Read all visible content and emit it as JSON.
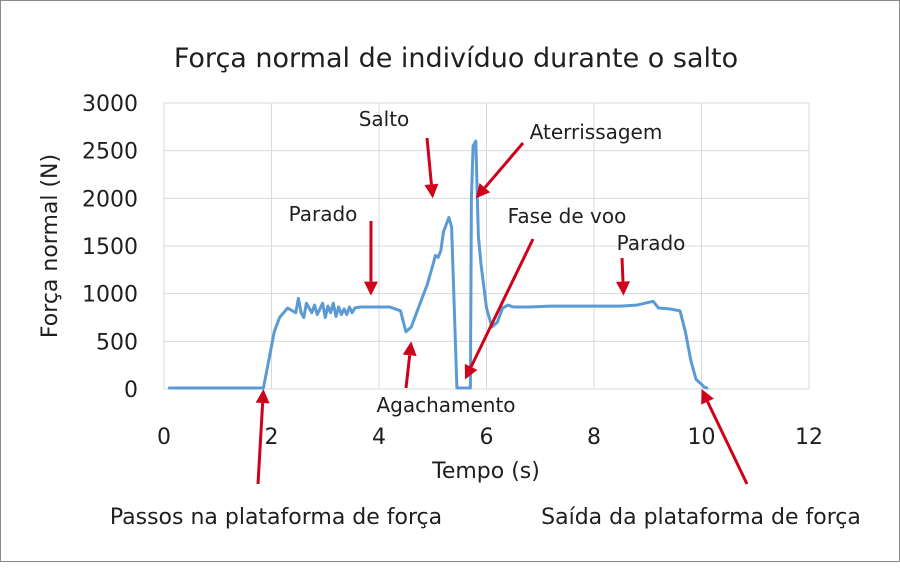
{
  "chart_data": {
    "type": "line",
    "title": "Força normal de indivíduo durante o salto",
    "xlabel": "Tempo (s)",
    "ylabel": "Força normal (N)",
    "xlim": [
      0,
      12
    ],
    "ylim": [
      0,
      3000
    ],
    "x_ticks": [
      0,
      2,
      4,
      6,
      8,
      10,
      12
    ],
    "y_ticks": [
      0,
      500,
      1000,
      1500,
      2000,
      2500,
      3000
    ],
    "grid": "both",
    "series_color": "#5b9bd5",
    "annotation_color": "#d0021b",
    "series": [
      {
        "x": [
          0.1,
          1.0,
          1.85,
          1.95,
          2.05,
          2.15,
          2.3,
          2.45,
          2.5,
          2.55,
          2.6,
          2.65,
          2.75,
          2.8,
          2.85,
          2.95,
          3.0,
          3.05,
          3.1,
          3.15,
          3.2,
          3.25,
          3.3,
          3.35,
          3.4,
          3.45,
          3.5,
          3.55,
          3.65,
          3.8,
          4.0,
          4.2,
          4.4,
          4.5,
          4.6,
          4.7,
          4.8,
          4.9,
          5.0,
          5.05,
          5.1,
          5.15,
          5.2,
          5.3,
          5.35,
          5.45,
          5.55,
          5.65,
          5.7,
          5.72,
          5.75,
          5.8,
          5.85,
          5.9,
          6.0,
          6.1,
          6.2,
          6.3,
          6.4,
          6.5,
          6.6,
          6.8,
          7.2,
          8.0,
          8.5,
          8.8,
          9.1,
          9.2,
          9.4,
          9.6,
          9.7,
          9.8,
          9.9,
          10.0,
          10.05,
          10.1
        ],
        "y": [
          10,
          10,
          10,
          300,
          600,
          750,
          850,
          800,
          950,
          800,
          750,
          900,
          800,
          880,
          780,
          900,
          750,
          870,
          800,
          900,
          760,
          860,
          780,
          840,
          780,
          860,
          800,
          850,
          860,
          860,
          860,
          860,
          820,
          600,
          650,
          800,
          950,
          1100,
          1300,
          1400,
          1380,
          1450,
          1650,
          1800,
          1700,
          10,
          10,
          10,
          10,
          2000,
          2550,
          2600,
          1600,
          1300,
          850,
          650,
          700,
          850,
          880,
          860,
          860,
          860,
          870,
          870,
          870,
          880,
          920,
          850,
          840,
          820,
          600,
          300,
          100,
          50,
          20,
          10
        ]
      }
    ],
    "annotations": [
      {
        "text": "Salto",
        "x": 5.0,
        "y": 2000
      },
      {
        "text": "Aterrissagem",
        "x": 5.8,
        "y": 2000
      },
      {
        "text": "Parado",
        "x": 3.85,
        "y": 980
      },
      {
        "text": "Fase de voo",
        "x": 5.6,
        "y": 100
      },
      {
        "text": "Parado",
        "x": 8.55,
        "y": 980
      },
      {
        "text": "Agachamento",
        "x": 4.6,
        "y": 500
      },
      {
        "text": "Passos na plataforma de força",
        "x": 1.85,
        "y": 0
      },
      {
        "text": "Saída da plataforma de força",
        "x": 10.0,
        "y": 0
      }
    ]
  }
}
